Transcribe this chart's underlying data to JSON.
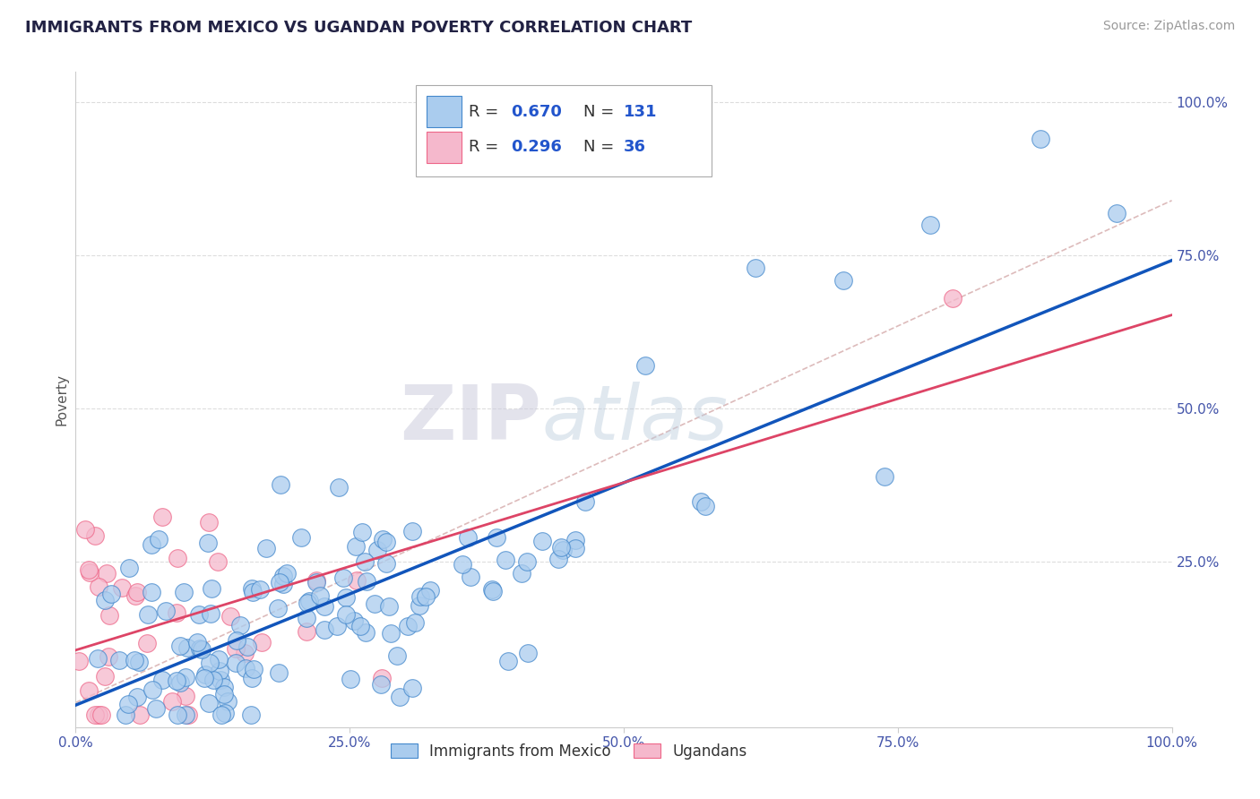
{
  "title": "IMMIGRANTS FROM MEXICO VS UGANDAN POVERTY CORRELATION CHART",
  "source": "Source: ZipAtlas.com",
  "ylabel": "Poverty",
  "xlim": [
    0,
    1
  ],
  "ylim": [
    -0.02,
    1.05
  ],
  "xticks": [
    0,
    0.25,
    0.5,
    0.75,
    1.0
  ],
  "yticks": [
    0,
    0.25,
    0.5,
    0.75,
    1.0
  ],
  "xticklabels": [
    "0.0%",
    "25.0%",
    "50.0%",
    "75.0%",
    "100.0%"
  ],
  "yticklabels": [
    "",
    "25.0%",
    "50.0%",
    "75.0%",
    "100.0%"
  ],
  "blue_R": 0.67,
  "blue_N": 131,
  "pink_R": 0.296,
  "pink_N": 36,
  "blue_color": "#aaccee",
  "pink_color": "#f5b8cc",
  "blue_edge_color": "#4488cc",
  "pink_edge_color": "#ee6688",
  "blue_line_color": "#1155bb",
  "pink_line_color": "#dd4466",
  "dashed_line_color": "#ddbbbb",
  "watermark_color": "#ccd8ee",
  "background_color": "#ffffff",
  "grid_color": "#dddddd",
  "title_color": "#222244",
  "tick_color": "#4455aa",
  "legend_value_color": "#2255cc",
  "legend_label_color": "#333333"
}
